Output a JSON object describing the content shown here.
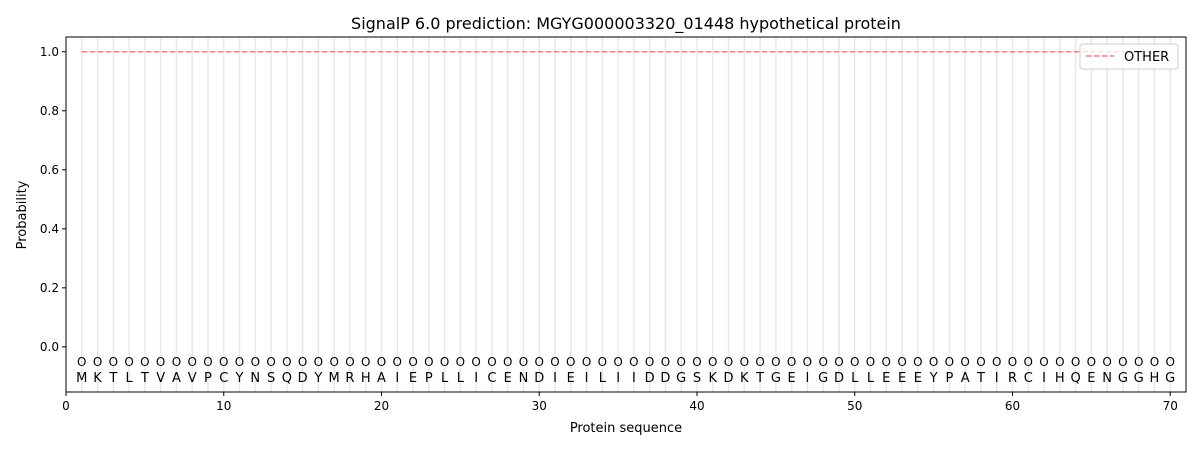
{
  "chart_data": {
    "type": "line",
    "title": "SignalP 6.0 prediction: MGYG000003320_01448 hypothetical protein",
    "xlabel": "Protein sequence",
    "ylabel": "Probability",
    "xlim": [
      0,
      71
    ],
    "ylim": [
      -0.153,
      1.05
    ],
    "xticks": [
      0,
      10,
      20,
      30,
      40,
      50,
      60,
      70
    ],
    "yticks": [
      0.0,
      0.2,
      0.4,
      0.6,
      0.8,
      1.0
    ],
    "ytick_labels": [
      "0.0",
      "0.2",
      "0.4",
      "0.6",
      "0.8",
      "1.0"
    ],
    "grid": "vertical lines at each residue",
    "legend_position": "top-right",
    "sequence": [
      "M",
      "K",
      "T",
      "L",
      "T",
      "V",
      "A",
      "V",
      "P",
      "C",
      "Y",
      "N",
      "S",
      "Q",
      "D",
      "Y",
      "M",
      "R",
      "H",
      "A",
      "I",
      "E",
      "P",
      "L",
      "L",
      "I",
      "C",
      "E",
      "N",
      "D",
      "I",
      "E",
      "I",
      "L",
      "I",
      "I",
      "D",
      "D",
      "G",
      "S",
      "K",
      "D",
      "K",
      "T",
      "G",
      "E",
      "I",
      "G",
      "D",
      "L",
      "L",
      "E",
      "E",
      "E",
      "Y",
      "P",
      "A",
      "T",
      "I",
      "R",
      "C",
      "I",
      "H",
      "Q",
      "E",
      "N",
      "G",
      "G",
      "H",
      "G"
    ],
    "predicted_label": "O",
    "series": [
      {
        "name": "OTHER",
        "color": "#f08080",
        "style": "dashed",
        "x_range": [
          1,
          70
        ],
        "value": 1.0
      }
    ]
  }
}
